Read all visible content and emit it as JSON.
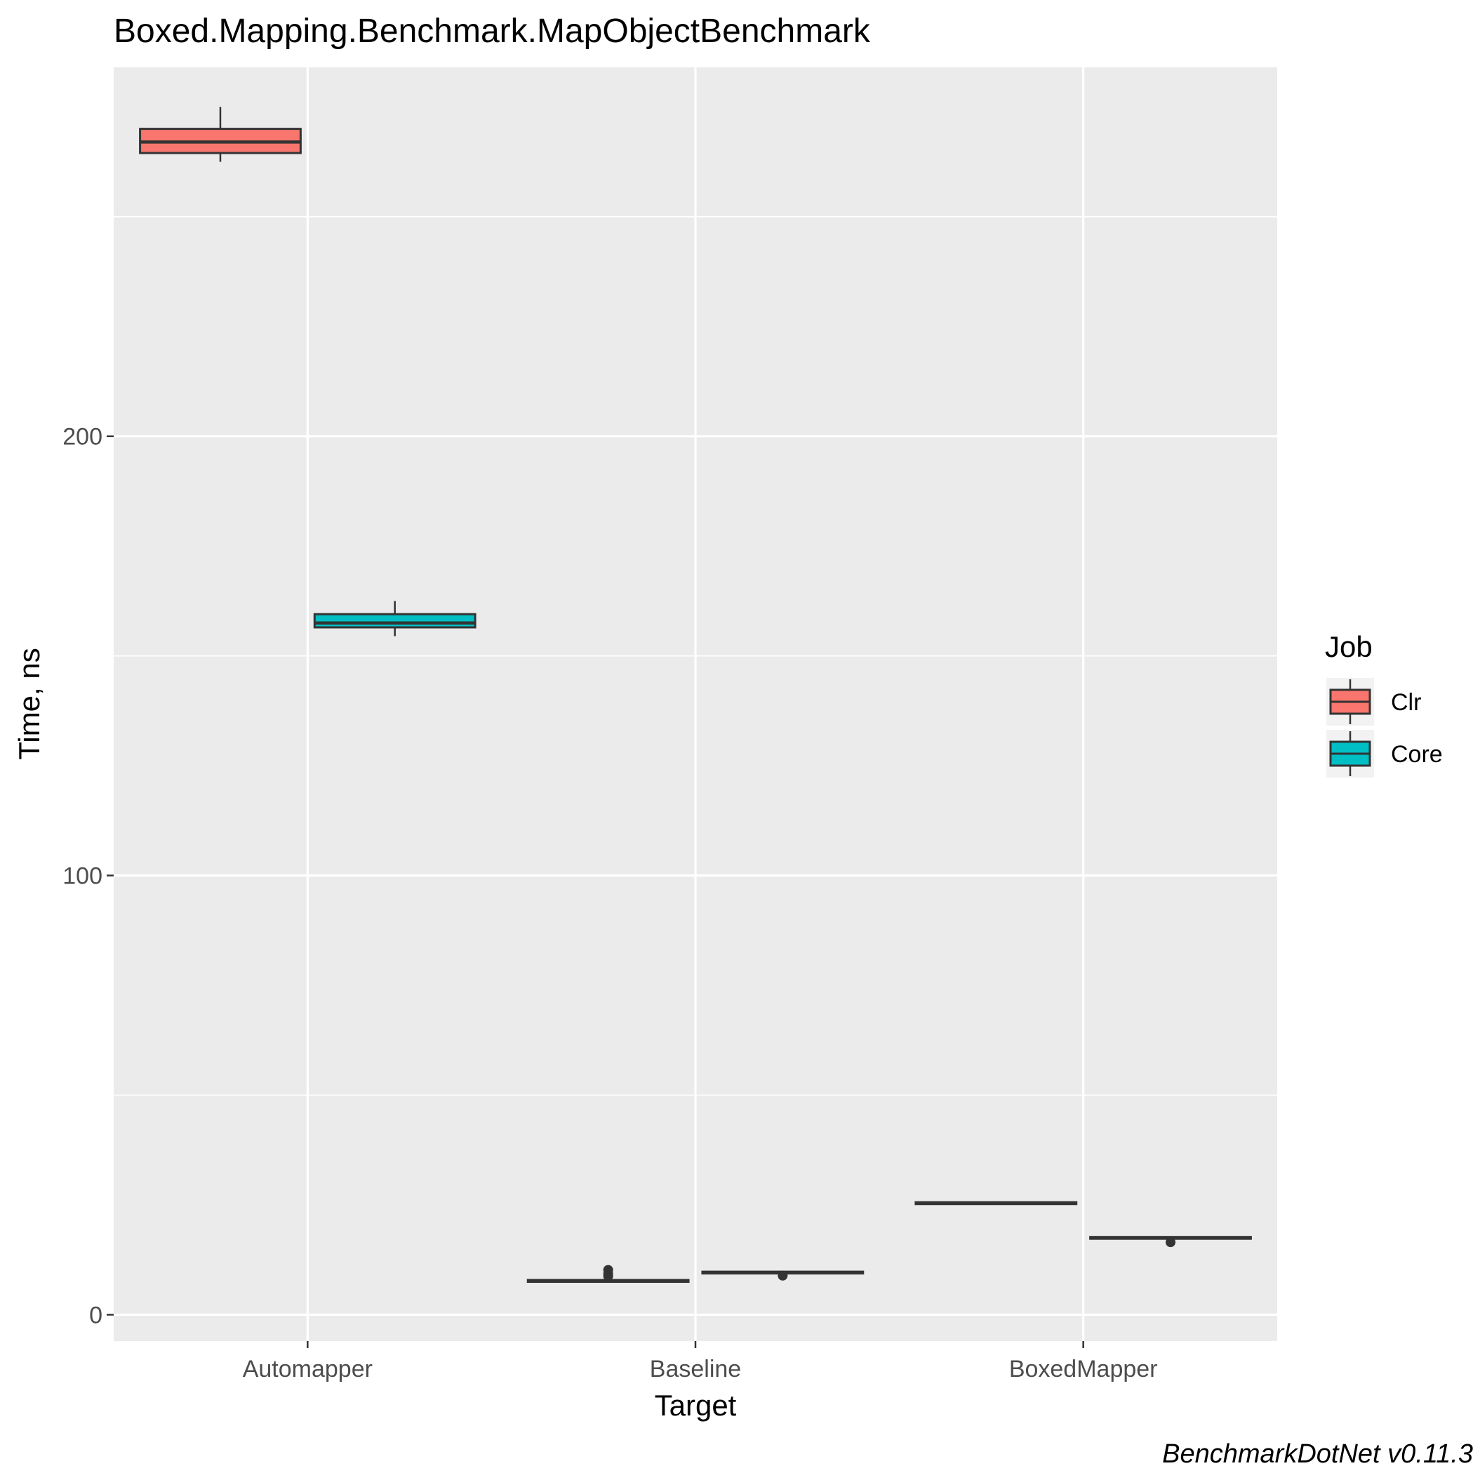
{
  "chart_data": {
    "type": "box",
    "title": "Boxed.Mapping.Benchmark.MapObjectBenchmark",
    "xlabel": "Target",
    "ylabel": "Time, ns",
    "caption": "BenchmarkDotNet v0.11.3",
    "categories": [
      "Automapper",
      "Baseline",
      "BoxedMapper"
    ],
    "ylim": [
      -6,
      284
    ],
    "yticks": [
      0,
      100,
      200
    ],
    "ytick_labels": [
      "0",
      "100",
      "200"
    ],
    "grid": true,
    "legend": {
      "title": "Job",
      "position": "right"
    },
    "series": [
      {
        "name": "Clr",
        "color": "#F8766D",
        "boxes": [
          {
            "category": "Automapper",
            "lower": 262.5,
            "q1": 264.5,
            "median": 267.0,
            "q3": 270.0,
            "upper": 275.0,
            "outliers": []
          },
          {
            "category": "Baseline",
            "lower": 7.3,
            "q1": 7.5,
            "median": 7.7,
            "q3": 7.9,
            "upper": 8.1,
            "outliers": [
              8.8,
              9.3,
              10.2
            ]
          },
          {
            "category": "BoxedMapper",
            "lower": 25.1,
            "q1": 25.2,
            "median": 25.4,
            "q3": 25.6,
            "upper": 25.8,
            "outliers": []
          }
        ]
      },
      {
        "name": "Core",
        "color": "#00BFC4",
        "boxes": [
          {
            "category": "Automapper",
            "lower": 154.5,
            "q1": 156.5,
            "median": 157.5,
            "q3": 159.5,
            "upper": 162.5,
            "outliers": []
          },
          {
            "category": "Baseline",
            "lower": 9.3,
            "q1": 9.4,
            "median": 9.6,
            "q3": 9.8,
            "upper": 9.9,
            "outliers": [
              8.9
            ]
          },
          {
            "category": "BoxedMapper",
            "lower": 17.2,
            "q1": 17.3,
            "median": 17.5,
            "q3": 17.7,
            "upper": 17.8,
            "outliers": [
              16.5
            ]
          }
        ]
      }
    ]
  }
}
